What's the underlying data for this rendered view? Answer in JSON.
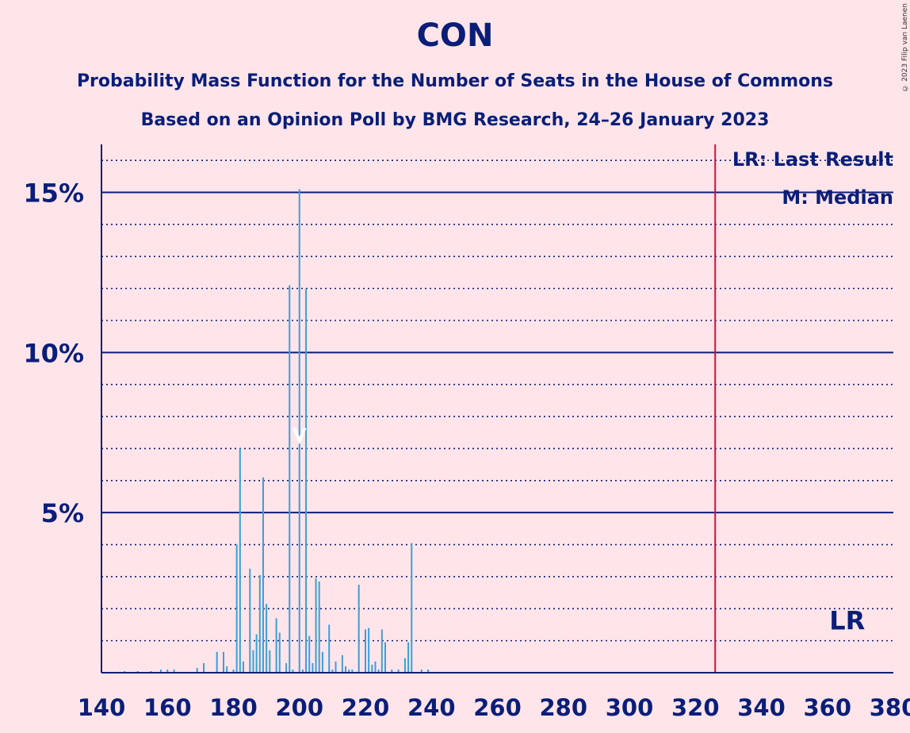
{
  "title": "CON",
  "subtitle": "Probability Mass Function for the Number of Seats in the House of Commons",
  "subtitle2": "Based on an Opinion Poll by BMG Research, 24–26 January 2023",
  "copyright": "© 2023 Filip van Laenen",
  "legend": {
    "last_result": "LR: Last Result",
    "median": "M: Median"
  },
  "colors": {
    "background": "#FFE5EA",
    "text": "#0A1E78",
    "bars": "#3B9FD8",
    "last_result_line": "#D0103A"
  },
  "chart_data": {
    "type": "bar",
    "xlabel": "",
    "ylabel": "",
    "xlim": [
      140,
      380
    ],
    "ylim": [
      0,
      16.5
    ],
    "x_ticks": [
      "140",
      "160",
      "180",
      "200",
      "220",
      "240",
      "260",
      "280",
      "300",
      "320",
      "340",
      "360",
      "380"
    ],
    "y_ticks": [
      "5%",
      "10%",
      "15%"
    ],
    "y_tick_values": [
      5,
      10,
      15
    ],
    "grid": true,
    "last_result": 326,
    "last_result_label": "LR",
    "median": 200,
    "median_label": "M",
    "points": [
      [
        147,
        0.05
      ],
      [
        151,
        0.05
      ],
      [
        155,
        0.05
      ],
      [
        158,
        0.1
      ],
      [
        160,
        0.1
      ],
      [
        162,
        0.1
      ],
      [
        169,
        0.15
      ],
      [
        171,
        0.3
      ],
      [
        175,
        0.65
      ],
      [
        177,
        0.65
      ],
      [
        178,
        0.2
      ],
      [
        180,
        0.1
      ],
      [
        181,
        4.0
      ],
      [
        182,
        7.0
      ],
      [
        183,
        0.35
      ],
      [
        185,
        3.25
      ],
      [
        186,
        0.7
      ],
      [
        187,
        1.2
      ],
      [
        188,
        3.05
      ],
      [
        189,
        6.1
      ],
      [
        190,
        2.15
      ],
      [
        191,
        0.7
      ],
      [
        193,
        1.7
      ],
      [
        194,
        1.25
      ],
      [
        196,
        0.3
      ],
      [
        197,
        12.1
      ],
      [
        198,
        0.1
      ],
      [
        200,
        15.1
      ],
      [
        201,
        0.1
      ],
      [
        202,
        12.0
      ],
      [
        203,
        1.15
      ],
      [
        204,
        0.3
      ],
      [
        205,
        2.95
      ],
      [
        206,
        2.85
      ],
      [
        207,
        0.65
      ],
      [
        209,
        1.5
      ],
      [
        210,
        0.1
      ],
      [
        211,
        0.35
      ],
      [
        213,
        0.55
      ],
      [
        214,
        0.2
      ],
      [
        215,
        0.1
      ],
      [
        216,
        0.1
      ],
      [
        218,
        2.75
      ],
      [
        220,
        1.35
      ],
      [
        221,
        1.4
      ],
      [
        222,
        0.25
      ],
      [
        223,
        0.35
      ],
      [
        224,
        0.1
      ],
      [
        225,
        1.35
      ],
      [
        226,
        0.95
      ],
      [
        228,
        0.1
      ],
      [
        230,
        0.1
      ],
      [
        232,
        0.45
      ],
      [
        233,
        0.95
      ],
      [
        234,
        4.05
      ],
      [
        237,
        0.1
      ],
      [
        239,
        0.1
      ]
    ]
  }
}
